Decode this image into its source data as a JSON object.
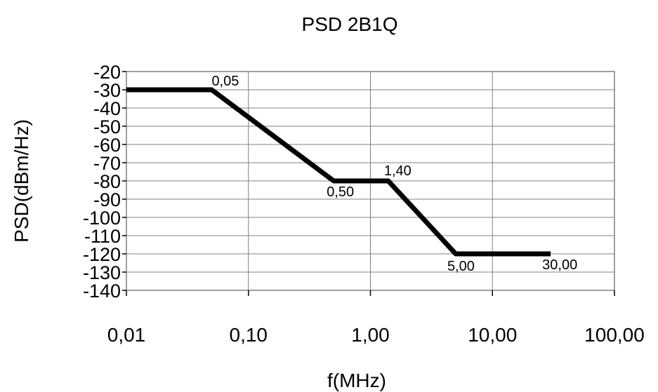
{
  "chart_data": {
    "type": "line",
    "title": "PSD 2B1Q",
    "xlabel": "f(MHz)",
    "ylabel": "PSD(dBm/Hz)",
    "xscale": "log",
    "xlim": [
      0.01,
      100
    ],
    "ylim": [
      -140,
      -20
    ],
    "xticks": [
      "0,01",
      "0,10",
      "1,00",
      "10,00",
      "100,00"
    ],
    "xtick_values": [
      0.01,
      0.1,
      1,
      10,
      100
    ],
    "yticks": [
      "-20",
      "-30",
      "-40",
      "-50",
      "-60",
      "-70",
      "-80",
      "-90",
      "-100",
      "-110",
      "-120",
      "-130",
      "-140"
    ],
    "ytick_values": [
      -20,
      -30,
      -40,
      -50,
      -60,
      -70,
      -80,
      -90,
      -100,
      -110,
      -120,
      -130,
      -140
    ],
    "grid": true,
    "line_color": "#000000",
    "series": [
      {
        "x": [
          0.01,
          0.05,
          0.5,
          1.4,
          5,
          30
        ],
        "y": [
          -30,
          -30,
          -80,
          -80,
          -120,
          -120
        ]
      }
    ],
    "annotations": [
      {
        "text": "0,05",
        "x": 0.05,
        "y": -30
      },
      {
        "text": "0,50",
        "x": 0.5,
        "y": -80
      },
      {
        "text": "1,40",
        "x": 1.4,
        "y": -80
      },
      {
        "text": "5,00",
        "x": 5,
        "y": -120
      },
      {
        "text": "30,00",
        "x": 30,
        "y": -120
      }
    ]
  }
}
